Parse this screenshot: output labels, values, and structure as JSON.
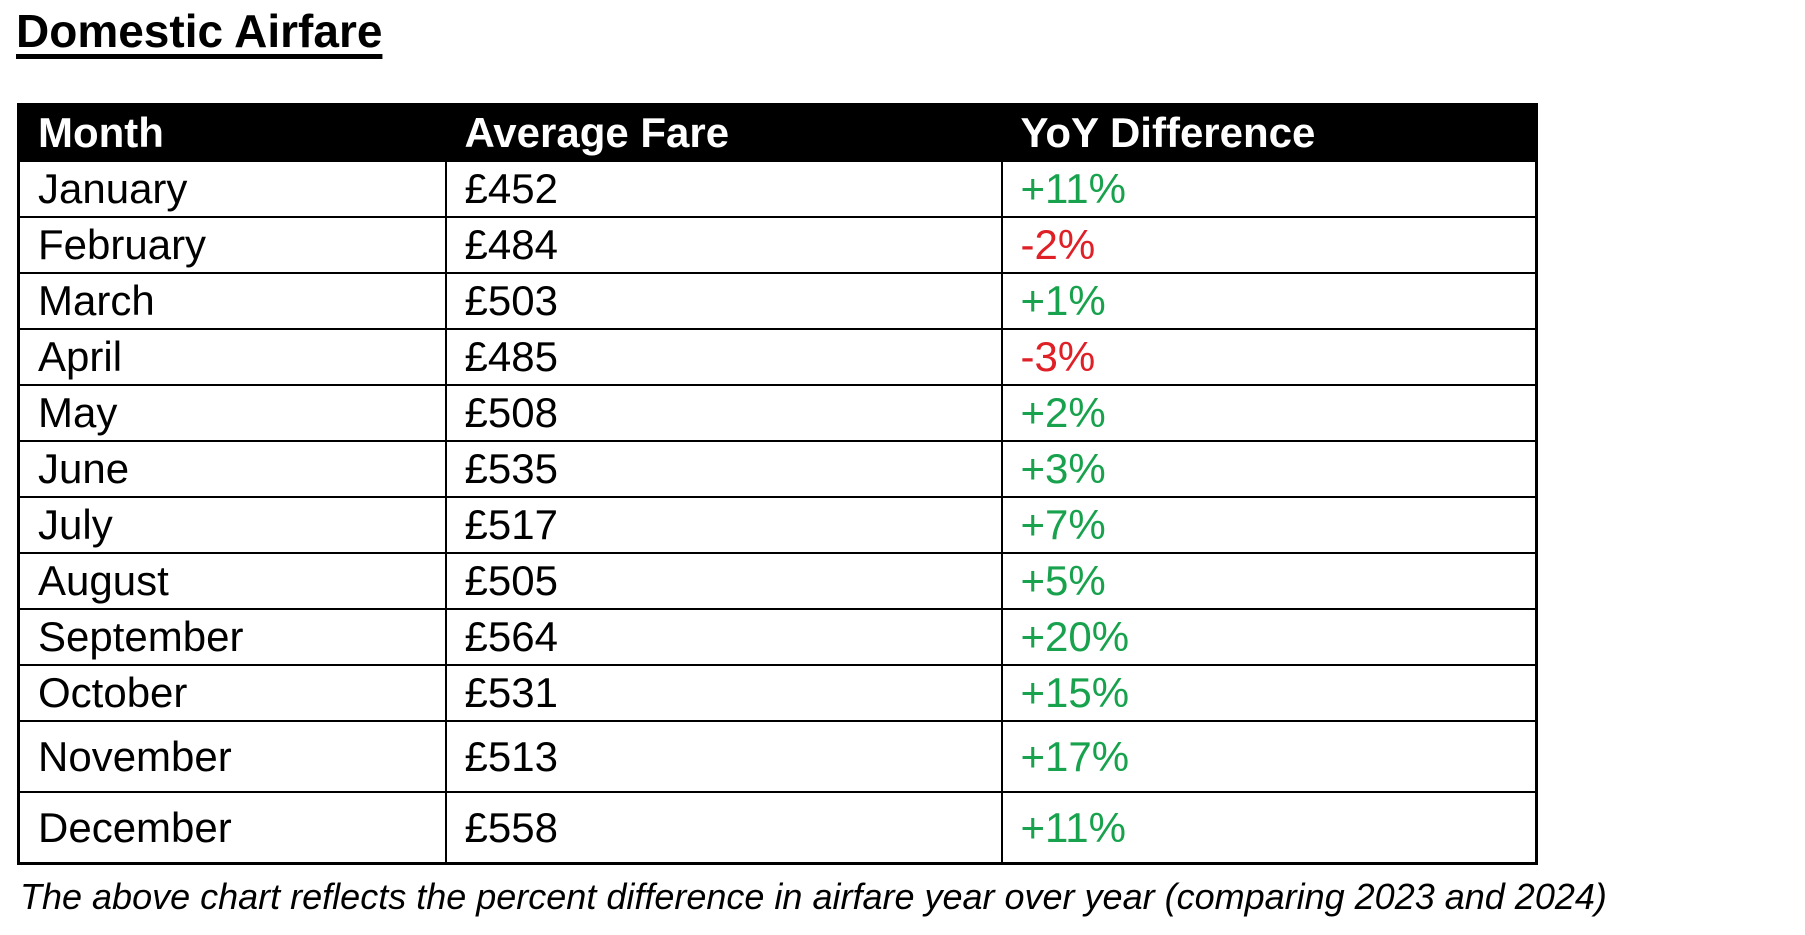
{
  "page_title": "Domestic Airfare",
  "table": {
    "columns": [
      "Month",
      "Average Fare",
      "YoY Difference"
    ],
    "rows": [
      {
        "month": "January",
        "fare": "£452",
        "yoy": "+11%",
        "trend": "up"
      },
      {
        "month": "February",
        "fare": "£484",
        "yoy": "-2%",
        "trend": "down"
      },
      {
        "month": "March",
        "fare": "£503",
        "yoy": "+1%",
        "trend": "up"
      },
      {
        "month": "April",
        "fare": "£485",
        "yoy": "-3%",
        "trend": "down"
      },
      {
        "month": "May",
        "fare": "£508",
        "yoy": "+2%",
        "trend": "up"
      },
      {
        "month": "June",
        "fare": "£535",
        "yoy": "+3%",
        "trend": "up"
      },
      {
        "month": "July",
        "fare": "£517",
        "yoy": "+7%",
        "trend": "up"
      },
      {
        "month": "August",
        "fare": "£505",
        "yoy": "+5%",
        "trend": "up"
      },
      {
        "month": "September",
        "fare": "£564",
        "yoy": "+20%",
        "trend": "up"
      },
      {
        "month": "October",
        "fare": "£531",
        "yoy": "+15%",
        "trend": "up"
      },
      {
        "month": "November",
        "fare": "£513",
        "yoy": "+17%",
        "trend": "up"
      },
      {
        "month": "December",
        "fare": "£558",
        "yoy": "+11%",
        "trend": "up"
      }
    ]
  },
  "footnote": "The above chart reflects the percent difference in airfare year over year (comparing 2023 and 2024)",
  "colors": {
    "positive": "#18A24D",
    "negative": "#DF2027",
    "header_bg": "#000000",
    "header_text": "#FFFFFF",
    "text": "#000000"
  },
  "chart_data": {
    "type": "table",
    "title": "Domestic Airfare",
    "categories": [
      "January",
      "February",
      "March",
      "April",
      "May",
      "June",
      "July",
      "August",
      "September",
      "October",
      "November",
      "December"
    ],
    "series": [
      {
        "name": "Average Fare (£)",
        "values": [
          452,
          484,
          503,
          485,
          508,
          535,
          517,
          505,
          564,
          531,
          513,
          558
        ]
      },
      {
        "name": "YoY Difference (%)",
        "values": [
          11,
          -2,
          1,
          -3,
          2,
          3,
          7,
          5,
          20,
          15,
          17,
          11
        ]
      }
    ],
    "note": "The above chart reflects the percent difference in airfare year over year (comparing 2023 and 2024)"
  }
}
